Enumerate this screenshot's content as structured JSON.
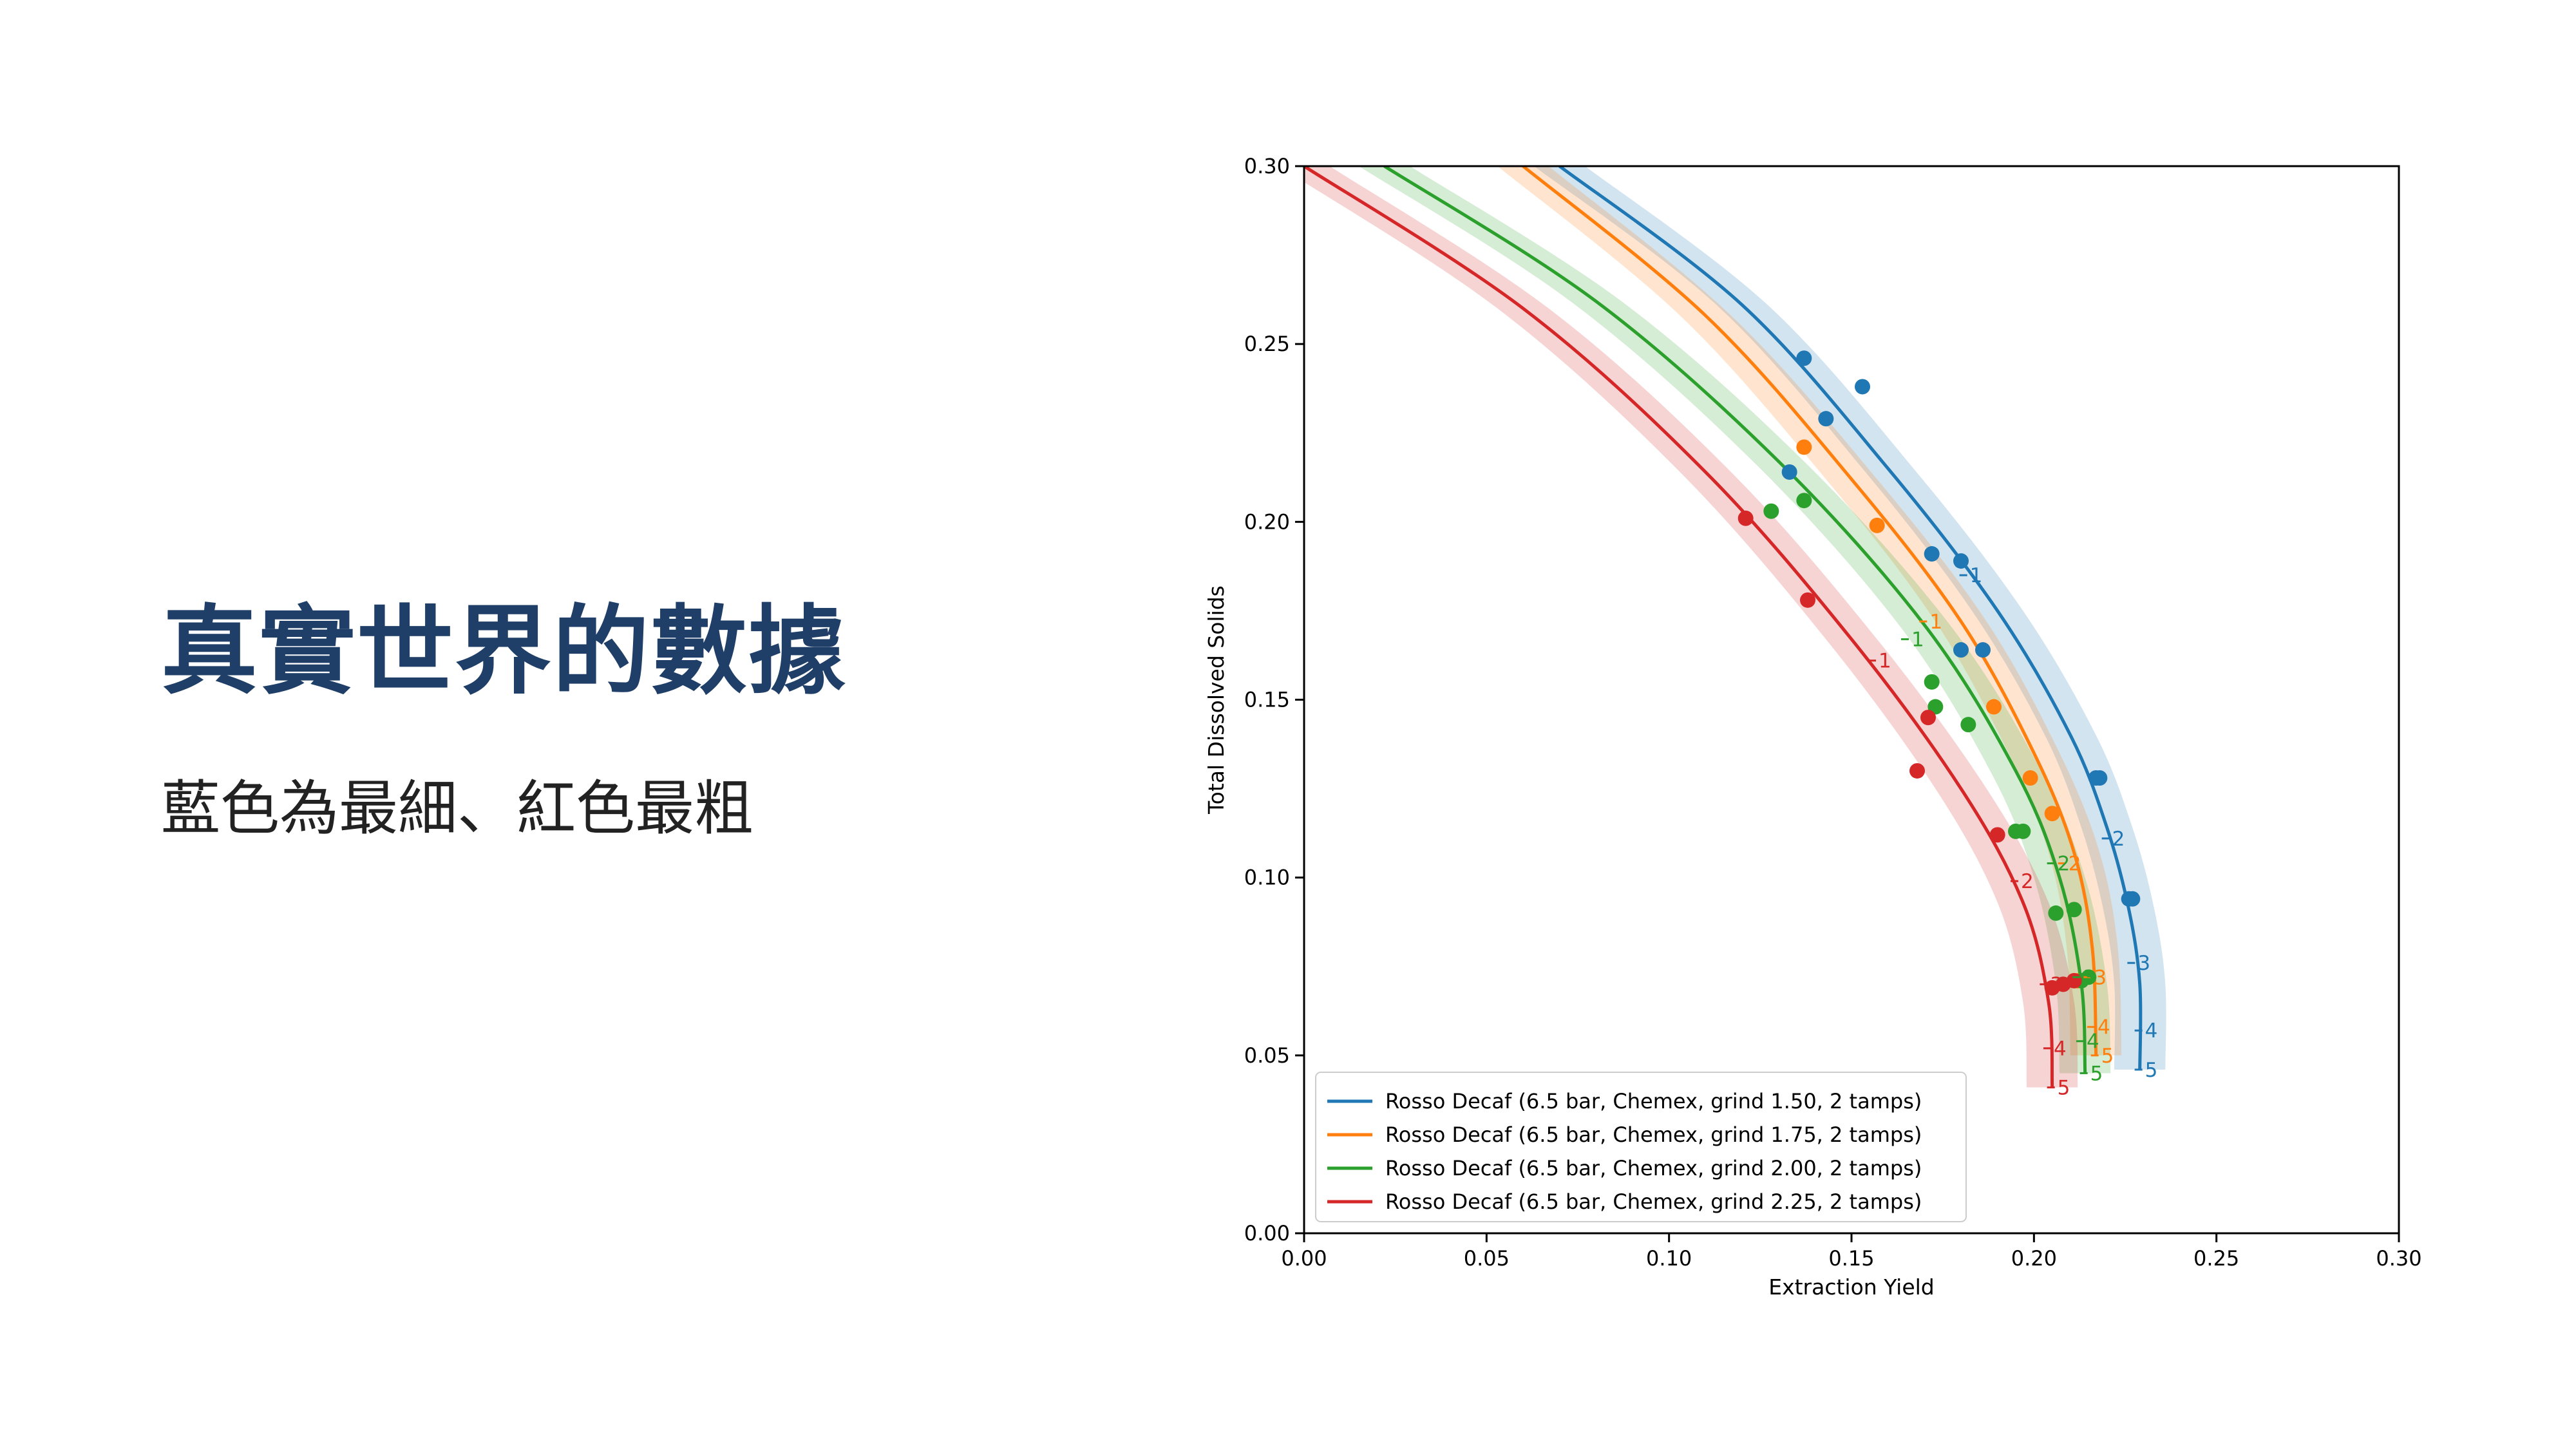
{
  "slide": {
    "title": "真實世界的數據",
    "subtitle": "藍色為最細、紅色最粗"
  },
  "chart_data": {
    "type": "line",
    "xlabel": "Extraction Yield",
    "ylabel": "Total Dissolved Solids",
    "xlim": [
      0,
      0.3
    ],
    "ylim": [
      0,
      0.3
    ],
    "xticks": [
      "0.00",
      "0.05",
      "0.10",
      "0.15",
      "0.20",
      "0.25",
      "0.30"
    ],
    "yticks": [
      "0.00",
      "0.05",
      "0.10",
      "0.15",
      "0.20",
      "0.25",
      "0.30"
    ],
    "grid": false,
    "legend_position": "bottom-left",
    "series": [
      {
        "name": "Rosso Decaf (6.5 bar, Chemex, grind 1.50, 2 tamps)",
        "color": "#1f77b4",
        "curve": {
          "x": [
            0.07,
            0.12,
            0.16,
            0.19,
            0.21,
            0.22,
            0.226,
            0.229,
            0.229
          ],
          "y": [
            0.3,
            0.261,
            0.215,
            0.175,
            0.14,
            0.114,
            0.091,
            0.07,
            0.046
          ]
        },
        "band": 0.007,
        "markers": [
          {
            "label": "1",
            "x": 0.181,
            "y": 0.185
          },
          {
            "label": "2",
            "x": 0.22,
            "y": 0.111
          },
          {
            "label": "3",
            "x": 0.227,
            "y": 0.076
          },
          {
            "label": "4",
            "x": 0.229,
            "y": 0.057
          },
          {
            "label": "5",
            "x": 0.229,
            "y": 0.046
          }
        ],
        "points": [
          {
            "x": 0.137,
            "y": 0.246
          },
          {
            "x": 0.143,
            "y": 0.229
          },
          {
            "x": 0.153,
            "y": 0.238
          },
          {
            "x": 0.133,
            "y": 0.214
          },
          {
            "x": 0.172,
            "y": 0.191
          },
          {
            "x": 0.18,
            "y": 0.189
          },
          {
            "x": 0.18,
            "y": 0.164
          },
          {
            "x": 0.186,
            "y": 0.164
          },
          {
            "x": 0.217,
            "y": 0.128
          },
          {
            "x": 0.218,
            "y": 0.128
          },
          {
            "x": 0.226,
            "y": 0.094
          },
          {
            "x": 0.227,
            "y": 0.094
          }
        ]
      },
      {
        "name": "Rosso Decaf (6.5 bar, Chemex, grind 1.75, 2 tamps)",
        "color": "#ff7f0e",
        "curve": {
          "x": [
            0.06,
            0.11,
            0.15,
            0.18,
            0.2,
            0.211,
            0.216,
            0.217
          ],
          "y": [
            0.3,
            0.258,
            0.212,
            0.172,
            0.135,
            0.107,
            0.08,
            0.05
          ]
        },
        "band": 0.007,
        "markers": [
          {
            "label": "1",
            "x": 0.17,
            "y": 0.172
          },
          {
            "label": "2",
            "x": 0.208,
            "y": 0.104
          },
          {
            "label": "3",
            "x": 0.215,
            "y": 0.072
          },
          {
            "label": "4",
            "x": 0.216,
            "y": 0.058
          },
          {
            "label": "5",
            "x": 0.217,
            "y": 0.05
          }
        ],
        "points": [
          {
            "x": 0.137,
            "y": 0.221
          },
          {
            "x": 0.157,
            "y": 0.199
          },
          {
            "x": 0.189,
            "y": 0.148
          },
          {
            "x": 0.199,
            "y": 0.128
          },
          {
            "x": 0.205,
            "y": 0.118
          },
          {
            "x": 0.212,
            "y": 0.071
          }
        ]
      },
      {
        "name": "Rosso Decaf (6.5 bar, Chemex, grind 2.00, 2 tamps)",
        "color": "#2ca02c",
        "curve": {
          "x": [
            0.022,
            0.08,
            0.13,
            0.17,
            0.195,
            0.207,
            0.213,
            0.214
          ],
          "y": [
            0.3,
            0.262,
            0.217,
            0.171,
            0.13,
            0.1,
            0.07,
            0.045
          ]
        },
        "band": 0.007,
        "markers": [
          {
            "label": "1",
            "x": 0.165,
            "y": 0.167
          },
          {
            "label": "2",
            "x": 0.205,
            "y": 0.104
          },
          {
            "label": "3",
            "x": 0.212,
            "y": 0.072
          },
          {
            "label": "4",
            "x": 0.213,
            "y": 0.054
          },
          {
            "label": "5",
            "x": 0.214,
            "y": 0.045
          }
        ],
        "points": [
          {
            "x": 0.128,
            "y": 0.203
          },
          {
            "x": 0.137,
            "y": 0.206
          },
          {
            "x": 0.172,
            "y": 0.155
          },
          {
            "x": 0.173,
            "y": 0.148
          },
          {
            "x": 0.182,
            "y": 0.143
          },
          {
            "x": 0.195,
            "y": 0.113
          },
          {
            "x": 0.197,
            "y": 0.113
          },
          {
            "x": 0.206,
            "y": 0.09
          },
          {
            "x": 0.211,
            "y": 0.091
          },
          {
            "x": 0.213,
            "y": 0.071
          },
          {
            "x": 0.215,
            "y": 0.072
          }
        ]
      },
      {
        "name": "Rosso Decaf (6.5 bar, Chemex, grind 2.25, 2 tamps)",
        "color": "#d62728",
        "curve": {
          "x": [
            0.0,
            0.06,
            0.11,
            0.15,
            0.18,
            0.197,
            0.204,
            0.205
          ],
          "y": [
            0.3,
            0.26,
            0.214,
            0.167,
            0.125,
            0.093,
            0.065,
            0.041
          ]
        },
        "band": 0.007,
        "markers": [
          {
            "label": "1",
            "x": 0.156,
            "y": 0.161
          },
          {
            "label": "2",
            "x": 0.195,
            "y": 0.099
          },
          {
            "label": "3",
            "x": 0.203,
            "y": 0.07
          },
          {
            "label": "4",
            "x": 0.204,
            "y": 0.052
          },
          {
            "label": "5",
            "x": 0.205,
            "y": 0.041
          }
        ],
        "points": [
          {
            "x": 0.121,
            "y": 0.201
          },
          {
            "x": 0.138,
            "y": 0.178
          },
          {
            "x": 0.171,
            "y": 0.145
          },
          {
            "x": 0.168,
            "y": 0.13
          },
          {
            "x": 0.19,
            "y": 0.112
          },
          {
            "x": 0.205,
            "y": 0.069
          },
          {
            "x": 0.208,
            "y": 0.07
          },
          {
            "x": 0.211,
            "y": 0.071
          }
        ]
      }
    ]
  }
}
